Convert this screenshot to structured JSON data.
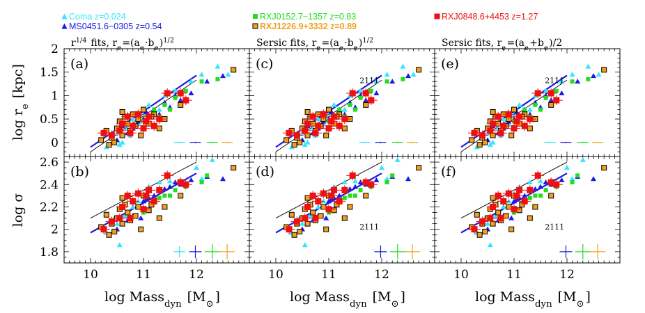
{
  "legend": [
    {
      "label": "Coma  z=0.024",
      "color": "#33e6ff",
      "marker": "triangle"
    },
    {
      "label": "MS0451.6−0305  z=0.54",
      "color": "#1a1ae6",
      "marker": "triangle"
    },
    {
      "label": "RXJ0152.7−1357  z=0.83",
      "color": "#22dd22",
      "marker": "square"
    },
    {
      "label": "RXJ1226.9+3332  z=0.89",
      "color": "#f0a020",
      "marker": "square-outlined"
    },
    {
      "label": "RXJ0848.6+4453  z=1.27",
      "color": "#ee1111",
      "marker": "square"
    }
  ],
  "panel_titles": {
    "col1": "r^{1/4} fits, r_e=(a_e·b_e)^{1/2}",
    "col2": "Sersic fits, r_e=(a_e·b_e)^{1/2}",
    "col3": "Sersic fits, r_e=(a_e+b_e)/2"
  },
  "panel_labels": [
    "(a)",
    "(c)",
    "(e)",
    "(b)",
    "(d)",
    "(f)"
  ],
  "annotation": "2111",
  "chart_data": {
    "type": "scatter",
    "xlabel": "log Mass_dyn [M_⊙]",
    "xlim": [
      9.5,
      13.0
    ],
    "xticks": [
      10,
      11,
      12
    ],
    "top_row": {
      "ylabel": "log r_e [kpc]",
      "ylim": [
        -0.3,
        2.0
      ],
      "yticks": [
        0,
        0.5,
        1,
        1.5,
        2
      ]
    },
    "bottom_row": {
      "ylabel": "log σ",
      "ylim": [
        1.7,
        2.65
      ],
      "yticks": [
        1.8,
        2,
        2.2,
        2.4,
        2.6
      ]
    },
    "lines": {
      "top_thin_black": {
        "x": [
          10.0,
          12.0
        ],
        "y": [
          -0.2,
          1.33
        ]
      },
      "top_thick_blue": {
        "x": [
          10.0,
          12.0
        ],
        "y": [
          -0.1,
          1.43
        ]
      },
      "bottom_thin_black": {
        "x": [
          10.0,
          12.0
        ],
        "y": [
          2.1,
          2.6
        ]
      },
      "bottom_thick_blue": {
        "x": [
          10.0,
          12.0
        ],
        "y": [
          1.97,
          2.5
        ]
      }
    },
    "series": [
      {
        "name": "Coma  z=0.024",
        "top": [
          [
            10.3,
            -0.1
          ],
          [
            10.5,
            0.2
          ],
          [
            10.6,
            0.0
          ],
          [
            10.7,
            0.3
          ],
          [
            10.8,
            0.5
          ],
          [
            10.9,
            0.4
          ],
          [
            11.0,
            0.6
          ],
          [
            11.1,
            0.8
          ],
          [
            11.2,
            0.6
          ],
          [
            11.4,
            1.0
          ],
          [
            11.6,
            1.1
          ],
          [
            11.9,
            1.3
          ],
          [
            12.1,
            1.45
          ],
          [
            12.4,
            1.62
          ],
          [
            10.4,
            0.1
          ],
          [
            10.55,
            -0.05
          ],
          [
            10.75,
            0.15
          ],
          [
            11.0,
            0.3
          ],
          [
            11.3,
            0.7
          ],
          [
            12.6,
            1.45
          ]
        ],
        "bottom": [
          [
            10.3,
            1.97
          ],
          [
            10.5,
            2.05
          ],
          [
            10.55,
            1.86
          ],
          [
            10.7,
            2.15
          ],
          [
            10.8,
            2.2
          ],
          [
            10.9,
            2.25
          ],
          [
            11.0,
            2.32
          ],
          [
            11.1,
            2.38
          ],
          [
            11.3,
            2.42
          ],
          [
            11.5,
            2.43
          ],
          [
            12.0,
            2.55
          ],
          [
            12.3,
            2.62
          ],
          [
            10.45,
            2.1
          ],
          [
            10.65,
            2.12
          ],
          [
            11.2,
            2.3
          ],
          [
            12.1,
            2.45
          ]
        ]
      },
      {
        "name": "MS0451.6−0305  z=0.54",
        "top": [
          [
            10.5,
            0.05
          ],
          [
            10.7,
            0.2
          ],
          [
            10.8,
            0.3
          ],
          [
            10.9,
            0.45
          ],
          [
            11.0,
            0.5
          ],
          [
            11.1,
            0.55
          ],
          [
            11.2,
            0.7
          ],
          [
            11.3,
            0.6
          ],
          [
            11.5,
            0.75
          ],
          [
            11.7,
            0.9
          ],
          [
            11.9,
            1.05
          ],
          [
            12.2,
            1.3
          ],
          [
            12.5,
            1.42
          ],
          [
            10.6,
            0.35
          ],
          [
            11.05,
            0.65
          ],
          [
            11.4,
            0.85
          ],
          [
            10.95,
            0.15
          ],
          [
            11.6,
            1.0
          ]
        ],
        "bottom": [
          [
            10.5,
            2.0
          ],
          [
            10.7,
            2.08
          ],
          [
            10.8,
            2.12
          ],
          [
            10.9,
            2.2
          ],
          [
            11.0,
            2.25
          ],
          [
            11.1,
            2.28
          ],
          [
            11.2,
            2.3
          ],
          [
            11.3,
            2.35
          ],
          [
            11.5,
            2.38
          ],
          [
            11.7,
            2.4
          ],
          [
            11.9,
            2.44
          ],
          [
            12.2,
            2.47
          ],
          [
            12.5,
            2.45
          ],
          [
            10.6,
            2.05
          ],
          [
            11.05,
            2.27
          ],
          [
            11.4,
            2.36
          ],
          [
            10.95,
            2.1
          ],
          [
            11.6,
            2.42
          ]
        ]
      },
      {
        "name": "RXJ0152.7−1357  z=0.83",
        "top": [
          [
            10.9,
            0.6
          ],
          [
            11.2,
            0.7
          ],
          [
            11.4,
            0.8
          ],
          [
            11.6,
            0.95
          ],
          [
            11.8,
            1.1
          ],
          [
            12.1,
            1.3
          ],
          [
            12.4,
            1.35
          ],
          [
            11.0,
            0.45
          ],
          [
            11.5,
            0.7
          ],
          [
            11.3,
            0.55
          ]
        ],
        "bottom": [
          [
            10.9,
            2.2
          ],
          [
            11.2,
            2.25
          ],
          [
            11.4,
            2.3
          ],
          [
            11.6,
            2.35
          ],
          [
            11.8,
            2.38
          ],
          [
            12.1,
            2.42
          ],
          [
            12.2,
            2.48
          ],
          [
            11.0,
            2.15
          ],
          [
            11.5,
            2.3
          ],
          [
            11.3,
            2.28
          ]
        ]
      },
      {
        "name": "RXJ1226.9+3332  z=0.89",
        "top": [
          [
            10.2,
            0.05
          ],
          [
            10.3,
            0.25
          ],
          [
            10.4,
            0.1
          ],
          [
            10.5,
            0.3
          ],
          [
            10.55,
            0.45
          ],
          [
            10.6,
            0.15
          ],
          [
            10.65,
            0.55
          ],
          [
            10.7,
            0.4
          ],
          [
            10.75,
            0.25
          ],
          [
            10.8,
            0.6
          ],
          [
            10.85,
            0.35
          ],
          [
            10.9,
            0.5
          ],
          [
            11.0,
            0.7
          ],
          [
            11.1,
            0.4
          ],
          [
            11.2,
            0.6
          ],
          [
            11.3,
            0.3
          ],
          [
            11.7,
            0.8
          ],
          [
            12.7,
            1.55
          ],
          [
            10.45,
            0.0
          ],
          [
            10.6,
            0.65
          ],
          [
            10.95,
            0.15
          ],
          [
            11.15,
            0.55
          ],
          [
            11.4,
            0.5
          ],
          [
            10.35,
            -0.05
          ]
        ],
        "bottom": [
          [
            10.2,
            2.02
          ],
          [
            10.3,
            2.13
          ],
          [
            10.4,
            2.05
          ],
          [
            10.5,
            2.1
          ],
          [
            10.55,
            2.18
          ],
          [
            10.6,
            2.05
          ],
          [
            10.65,
            2.22
          ],
          [
            10.7,
            2.15
          ],
          [
            10.75,
            2.08
          ],
          [
            10.8,
            2.25
          ],
          [
            10.85,
            2.12
          ],
          [
            10.9,
            2.2
          ],
          [
            11.0,
            2.3
          ],
          [
            11.1,
            2.17
          ],
          [
            11.2,
            2.25
          ],
          [
            11.3,
            2.1
          ],
          [
            11.7,
            2.3
          ],
          [
            12.7,
            2.55
          ],
          [
            10.45,
            1.98
          ],
          [
            10.6,
            2.28
          ],
          [
            10.95,
            2.0
          ],
          [
            11.15,
            2.22
          ],
          [
            11.4,
            2.2
          ],
          [
            10.35,
            1.95
          ]
        ]
      },
      {
        "name": "RXJ0848.6+4453  z=1.27",
        "top": [
          [
            10.25,
            0.2
          ],
          [
            10.4,
            0.15
          ],
          [
            10.6,
            0.4
          ],
          [
            10.7,
            0.55
          ],
          [
            10.75,
            0.2
          ],
          [
            10.8,
            0.35
          ],
          [
            10.9,
            0.6
          ],
          [
            11.0,
            0.3
          ],
          [
            11.05,
            0.45
          ],
          [
            11.1,
            0.55
          ],
          [
            11.2,
            0.35
          ],
          [
            11.3,
            0.5
          ],
          [
            11.45,
            1.05
          ],
          [
            11.7,
            1.05
          ],
          [
            11.8,
            0.9
          ],
          [
            10.55,
            0.25
          ]
        ],
        "bottom": [
          [
            10.25,
            2.0
          ],
          [
            10.4,
            2.07
          ],
          [
            10.6,
            2.2
          ],
          [
            10.7,
            2.3
          ],
          [
            10.75,
            2.1
          ],
          [
            10.8,
            2.25
          ],
          [
            10.9,
            2.32
          ],
          [
            11.0,
            2.18
          ],
          [
            11.05,
            2.3
          ],
          [
            11.1,
            2.35
          ],
          [
            11.2,
            2.25
          ],
          [
            11.3,
            2.35
          ],
          [
            11.45,
            2.48
          ],
          [
            11.7,
            2.42
          ],
          [
            11.8,
            2.4
          ],
          [
            10.55,
            2.1
          ]
        ]
      }
    ]
  }
}
